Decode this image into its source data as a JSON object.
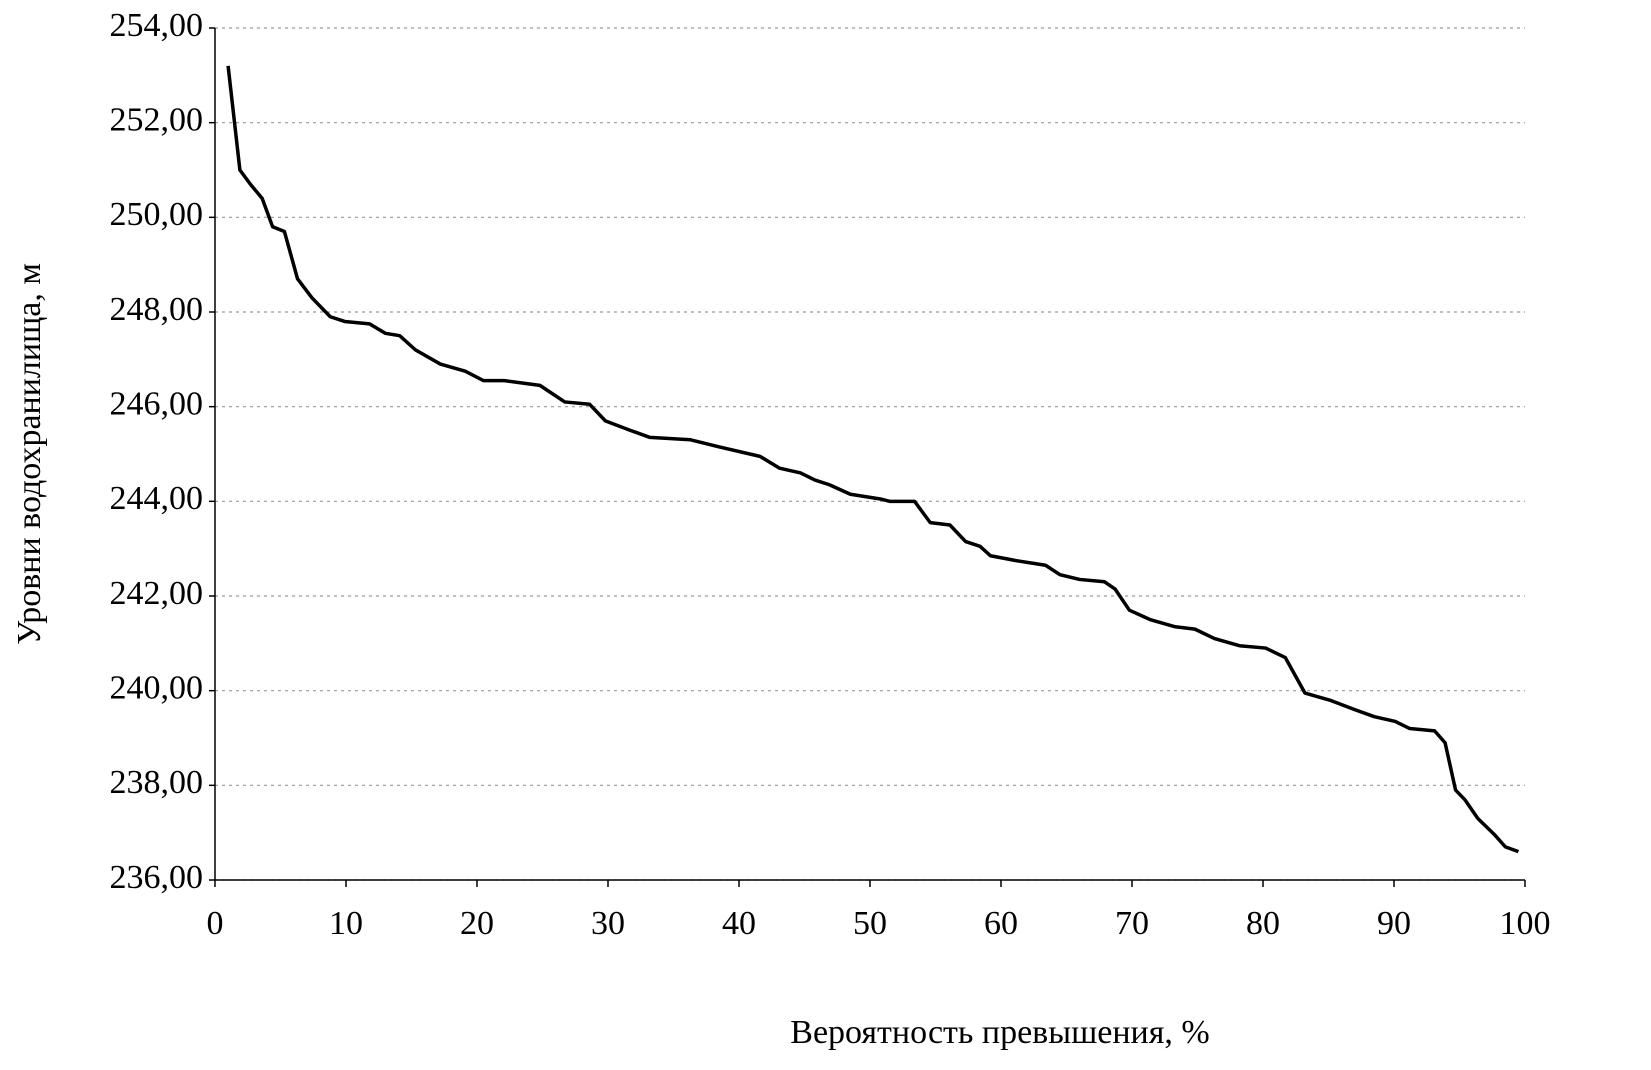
{
  "chart_data": {
    "type": "line",
    "xlabel": "Вероятность превышения, %",
    "ylabel": "Уровни водохранилища, м",
    "xlim": [
      0,
      100
    ],
    "xticks": [
      0,
      10,
      20,
      30,
      40,
      50,
      60,
      70,
      80,
      90,
      100
    ],
    "ylim": [
      236,
      254
    ],
    "yticks": [
      {
        "value": 236,
        "label": "236,00"
      },
      {
        "value": 238,
        "label": "238,00"
      },
      {
        "value": 240,
        "label": "240,00"
      },
      {
        "value": 242,
        "label": "242,00"
      },
      {
        "value": 244,
        "label": "244,00"
      },
      {
        "value": 246,
        "label": "246,00"
      },
      {
        "value": 248,
        "label": "248,00"
      },
      {
        "value": 250,
        "label": "250,00"
      },
      {
        "value": 252,
        "label": "252,00"
      },
      {
        "value": 254,
        "label": "254,00"
      }
    ],
    "grid": true,
    "color": "#000000",
    "x": [
      1.0,
      1.9,
      2.7,
      3.6,
      4.4,
      5.3,
      6.3,
      7.4,
      8.8,
      9.9,
      11.8,
      13.0,
      14.1,
      15.3,
      17.2,
      19.1,
      20.5,
      22.1,
      24.8,
      26.7,
      28.6,
      29.8,
      31.7,
      33.2,
      36.3,
      38.5,
      41.6,
      43.1,
      44.7,
      45.8,
      46.9,
      48.5,
      50.8,
      51.5,
      53.4,
      54.6,
      56.1,
      57.3,
      58.4,
      59.2,
      61.1,
      63.4,
      64.5,
      66.0,
      67.9,
      68.7,
      69.8,
      71.4,
      73.3,
      74.8,
      76.3,
      78.2,
      80.2,
      81.7,
      83.2,
      85.1,
      87.0,
      88.5,
      90.1,
      91.2,
      93.1,
      93.9,
      94.7,
      95.4,
      96.4,
      97.7,
      98.5,
      99.5
    ],
    "values": [
      253.2,
      251.0,
      250.7,
      250.4,
      249.8,
      249.7,
      248.7,
      248.3,
      247.9,
      247.8,
      247.75,
      247.55,
      247.5,
      247.2,
      246.9,
      246.75,
      246.55,
      246.55,
      246.45,
      246.1,
      246.05,
      245.7,
      245.5,
      245.35,
      245.3,
      245.15,
      244.95,
      244.7,
      244.6,
      244.45,
      244.35,
      244.15,
      244.05,
      244.0,
      244.0,
      243.55,
      243.5,
      243.15,
      243.05,
      242.85,
      242.75,
      242.65,
      242.45,
      242.35,
      242.3,
      242.15,
      241.7,
      241.5,
      241.35,
      241.3,
      241.1,
      240.95,
      240.9,
      240.7,
      239.95,
      239.8,
      239.6,
      239.45,
      239.35,
      239.2,
      239.15,
      238.9,
      237.9,
      237.7,
      237.3,
      236.95,
      236.7,
      236.6
    ]
  }
}
